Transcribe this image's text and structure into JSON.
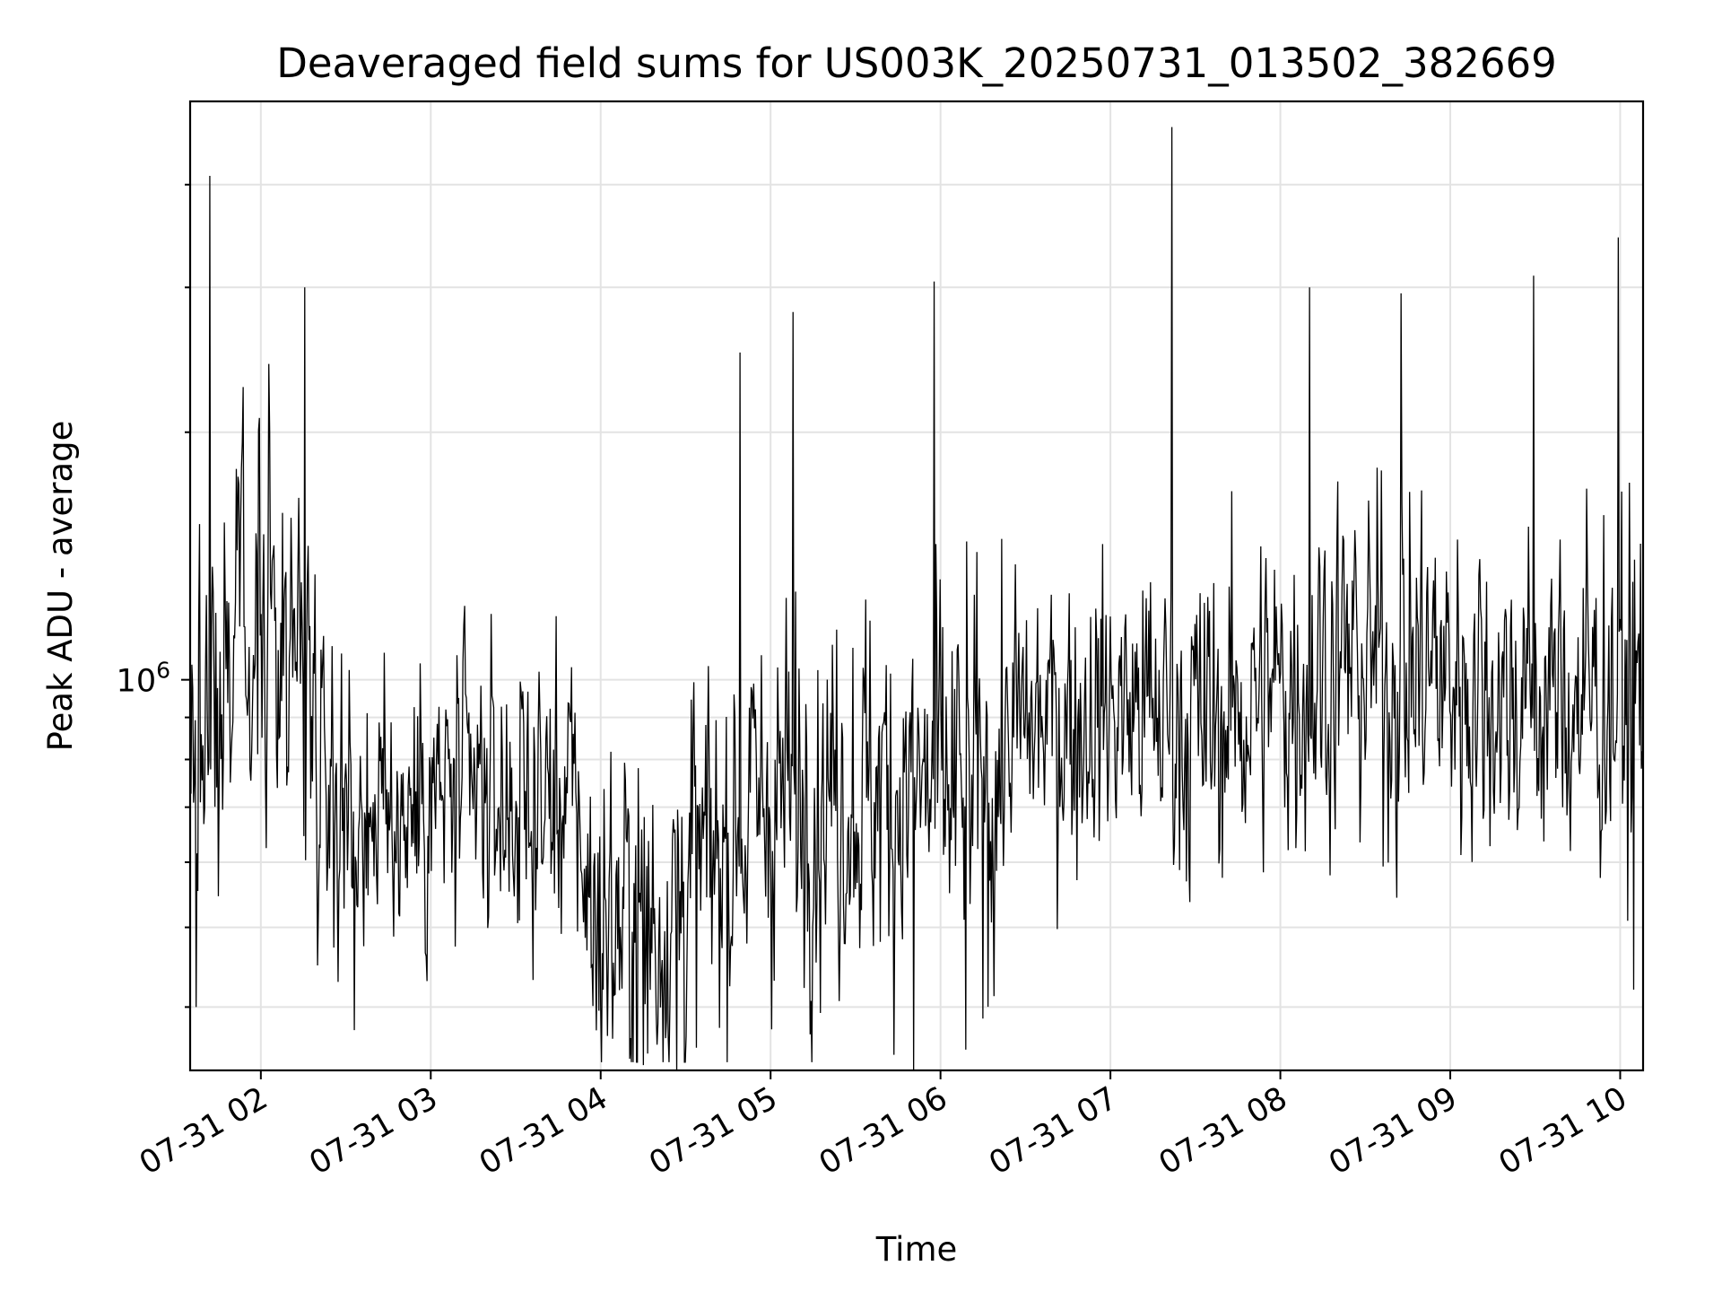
{
  "chart_data": {
    "type": "line",
    "title": "Deaveraged field sums for US003K_20250731_013502_382669",
    "xlabel": "Time",
    "ylabel": "Peak ADU - average",
    "yscale": "log",
    "grid": true,
    "legend": "none",
    "line_color": "#000000",
    "x_tick_labels": [
      "07-31 02",
      "07-31 03",
      "07-31 04",
      "07-31 05",
      "07-31 06",
      "07-31 07",
      "07-31 08",
      "07-31 09",
      "07-31 10"
    ],
    "x_ticks_hours": [
      2,
      3,
      4,
      5,
      6,
      7,
      8,
      9,
      10
    ],
    "xlim_hours": [
      1.5839,
      10.1347
    ],
    "y_tick_labels": [
      {
        "base": "10",
        "exp": "6",
        "value": 1000000
      }
    ],
    "y_minor_ticks": [
      400000,
      500000,
      600000,
      700000,
      800000,
      900000,
      2000000,
      3000000,
      4000000
    ],
    "ylim": [
      335000,
      5050000
    ],
    "series": [
      {
        "x_hours_from": 1.5839,
        "x_hours_to": 10.1347,
        "approx_points": 1700,
        "envelope_keyframes": [
          {
            "x_hours": 1.58,
            "center": 900000,
            "spread": 0.42
          },
          {
            "x_hours": 1.9,
            "center": 1150000,
            "spread": 0.4
          },
          {
            "x_hours": 2.2,
            "center": 1150000,
            "spread": 0.4
          },
          {
            "x_hours": 2.5,
            "center": 700000,
            "spread": 0.28
          },
          {
            "x_hours": 2.8,
            "center": 700000,
            "spread": 0.28
          },
          {
            "x_hours": 3.1,
            "center": 720000,
            "spread": 0.28
          },
          {
            "x_hours": 3.5,
            "center": 700000,
            "spread": 0.27
          },
          {
            "x_hours": 3.85,
            "center": 720000,
            "spread": 0.28
          },
          {
            "x_hours": 3.95,
            "center": 510000,
            "spread": 0.37
          },
          {
            "x_hours": 4.3,
            "center": 500000,
            "spread": 0.4
          },
          {
            "x_hours": 4.7,
            "center": 620000,
            "spread": 0.36
          },
          {
            "x_hours": 5.0,
            "center": 720000,
            "spread": 0.38
          },
          {
            "x_hours": 5.5,
            "center": 740000,
            "spread": 0.36
          },
          {
            "x_hours": 5.9,
            "center": 730000,
            "spread": 0.4
          },
          {
            "x_hours": 6.3,
            "center": 720000,
            "spread": 0.38
          },
          {
            "x_hours": 6.4,
            "center": 860000,
            "spread": 0.3
          },
          {
            "x_hours": 7.0,
            "center": 930000,
            "spread": 0.3
          },
          {
            "x_hours": 7.6,
            "center": 880000,
            "spread": 0.32
          },
          {
            "x_hours": 8.3,
            "center": 1050000,
            "spread": 0.36
          },
          {
            "x_hours": 8.9,
            "center": 1020000,
            "spread": 0.36
          },
          {
            "x_hours": 9.5,
            "center": 930000,
            "spread": 0.32
          },
          {
            "x_hours": 10.13,
            "center": 980000,
            "spread": 0.42
          }
        ],
        "notable_points": [
          {
            "x_hours": 1.62,
            "value": 400000
          },
          {
            "x_hours": 1.7,
            "value": 4100000
          },
          {
            "x_hours": 2.26,
            "value": 3000000
          },
          {
            "x_hours": 2.55,
            "value": 375000
          },
          {
            "x_hours": 4.25,
            "value": 340000
          },
          {
            "x_hours": 4.45,
            "value": 335000
          },
          {
            "x_hours": 4.82,
            "value": 2500000
          },
          {
            "x_hours": 5.13,
            "value": 2800000
          },
          {
            "x_hours": 5.84,
            "value": 335000
          },
          {
            "x_hours": 5.96,
            "value": 3050000
          },
          {
            "x_hours": 6.15,
            "value": 355000
          },
          {
            "x_hours": 7.36,
            "value": 4700000
          },
          {
            "x_hours": 8.17,
            "value": 3000000
          },
          {
            "x_hours": 8.71,
            "value": 2950000
          },
          {
            "x_hours": 9.49,
            "value": 3100000
          },
          {
            "x_hours": 9.99,
            "value": 3450000
          },
          {
            "x_hours": 10.08,
            "value": 420000
          }
        ]
      }
    ]
  }
}
